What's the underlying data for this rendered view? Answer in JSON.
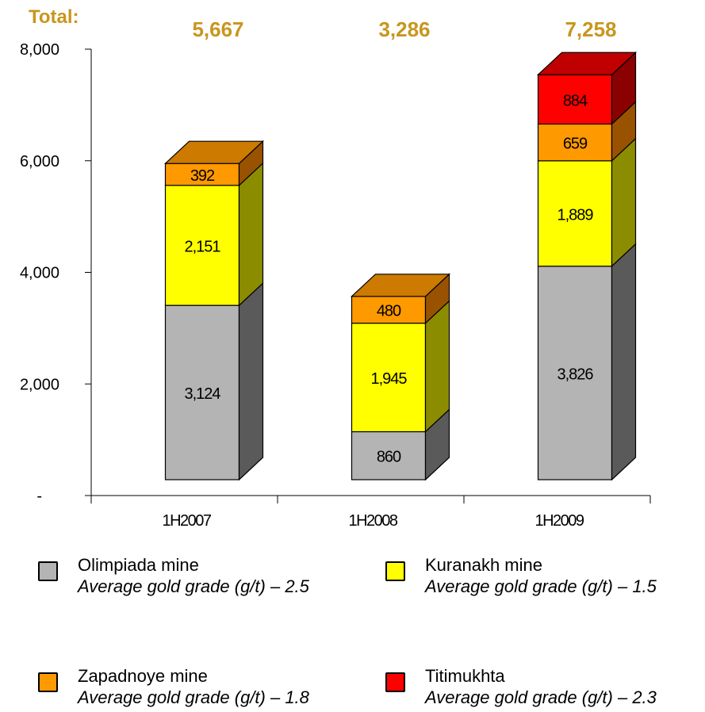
{
  "total_label": "Total:",
  "chart_data": {
    "type": "bar",
    "stacked": true,
    "style": "3d",
    "categories": [
      "1H2007",
      "1H2008",
      "1H2009"
    ],
    "totals": [
      "5,667",
      "3,286",
      "7,258"
    ],
    "ylim": [
      0,
      8000
    ],
    "y_ticks": [
      {
        "value": 0,
        "label": "-"
      },
      {
        "value": 2000,
        "label": "2,000"
      },
      {
        "value": 4000,
        "label": "4,000"
      },
      {
        "value": 6000,
        "label": "6,000"
      },
      {
        "value": 8000,
        "label": "8,000"
      }
    ],
    "grid": false,
    "colors": {
      "total": "#c8961e"
    },
    "series": [
      {
        "name": "Olimpiada mine",
        "color": "#b4b4b4",
        "side": "#5a5a5a",
        "top": "#9a9a9a",
        "values": [
          3124,
          860,
          3826
        ],
        "labels": [
          "3,124",
          "860",
          "3,826"
        ]
      },
      {
        "name": "Kuranakh mine",
        "color": "#ffff00",
        "side": "#8c8c00",
        "top": "#d2d200",
        "values": [
          2151,
          1945,
          1889
        ],
        "labels": [
          "2,151",
          "1,945",
          "1,889"
        ]
      },
      {
        "name": "Zapadnoye mine",
        "color": "#ff9900",
        "side": "#995200",
        "top": "#cc7a00",
        "values": [
          392,
          480,
          659
        ],
        "labels": [
          "392",
          "480",
          "659"
        ]
      },
      {
        "name": "Titimukhta",
        "color": "#ff0000",
        "side": "#8b0000",
        "top": "#c00000",
        "values": [
          null,
          null,
          884
        ],
        "labels": [
          "",
          "",
          "884"
        ]
      }
    ]
  },
  "legend": [
    {
      "name": "Olimpiada mine",
      "grade": "Average gold grade (g/t) – 2.5",
      "color": "#b4b4b4"
    },
    {
      "name": "Kuranakh mine",
      "grade": "Average gold grade (g/t) – 1.5",
      "color": "#ffff00"
    },
    {
      "name": "Zapadnoye mine",
      "grade": "Average gold grade (g/t) – 1.8",
      "color": "#ff9900"
    },
    {
      "name": "Titimukhta",
      "grade": "Average gold grade (g/t) – 2.3",
      "color": "#ff0000"
    }
  ]
}
